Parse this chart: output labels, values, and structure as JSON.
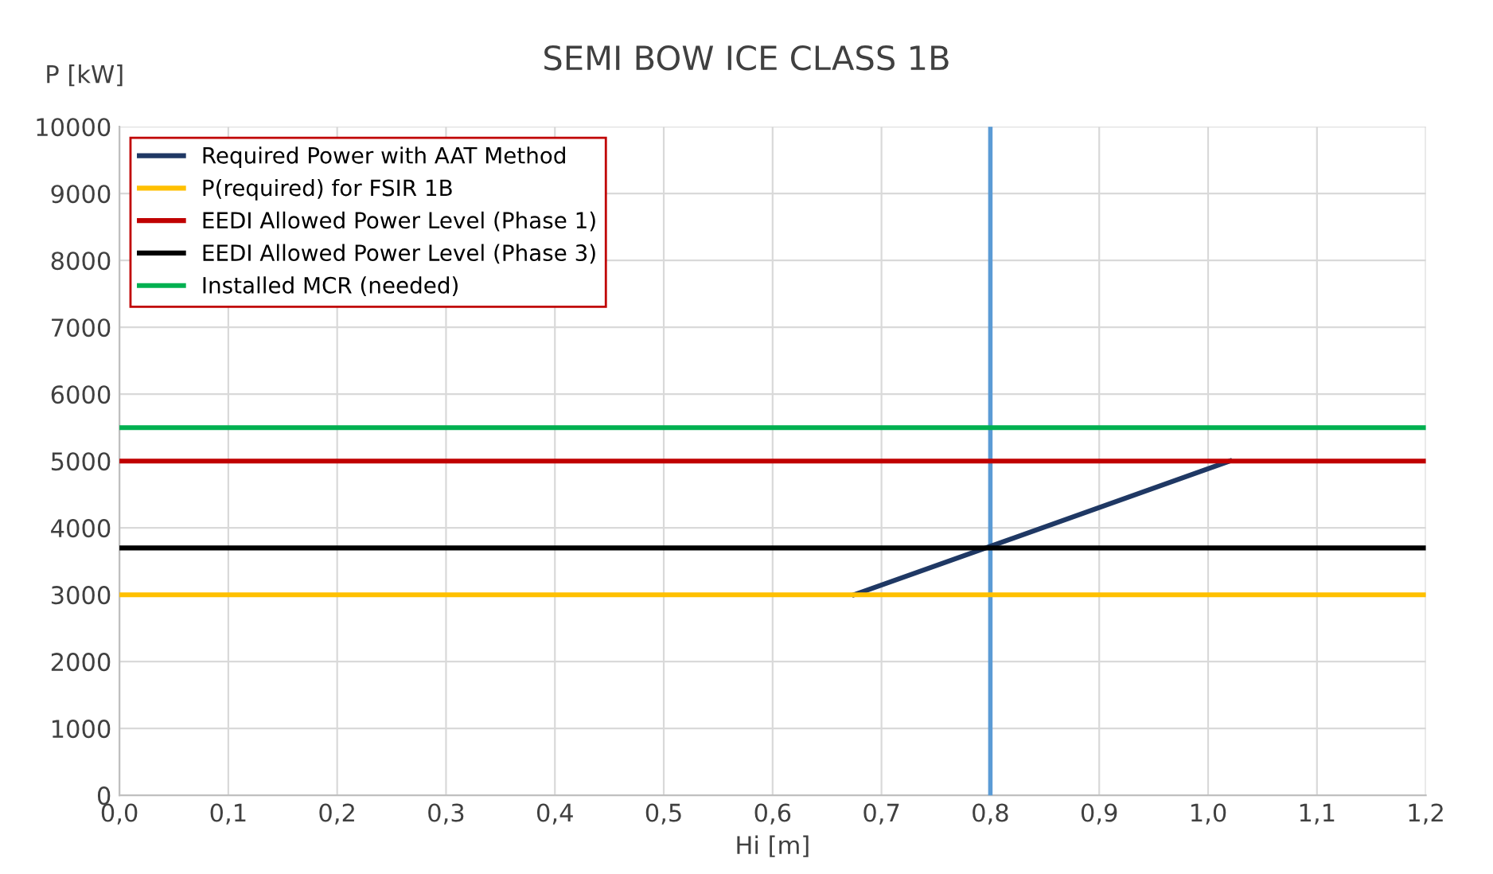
{
  "chart_data": {
    "type": "line",
    "title": "SEMI BOW ICE CLASS 1B",
    "xlabel": "Hi [m]",
    "ylabel": "P [kW]",
    "series": [
      {
        "name": "Required Power with AAT Method",
        "color": "#1f3864",
        "x": [
          0.675,
          1.02
        ],
        "values": [
          3000,
          5000
        ]
      },
      {
        "name": "P(required) for FSIR 1B",
        "color": "#ffc000",
        "x": [
          0,
          1.2
        ],
        "values": [
          3000,
          3000
        ]
      },
      {
        "name": "EEDI Allowed Power Level (Phase 1)",
        "color": "#c00000",
        "x": [
          0,
          1.2
        ],
        "values": [
          5000,
          5000
        ]
      },
      {
        "name": "EEDI Allowed Power Level (Phase 3)",
        "color": "#000000",
        "x": [
          0,
          1.2
        ],
        "values": [
          3700,
          3700
        ]
      },
      {
        "name": "Installed MCR (needed)",
        "color": "#00b050",
        "x": [
          0,
          1.2
        ],
        "values": [
          5500,
          5500
        ]
      }
    ],
    "ref_lines": [
      {
        "axis": "x",
        "value": 0.8,
        "color": "#5b9bd5"
      }
    ],
    "xlim": [
      0,
      1.2
    ],
    "xticks": [
      {
        "value": 0,
        "label": "0,0"
      },
      {
        "value": 0.1,
        "label": "0,1"
      },
      {
        "value": 0.2,
        "label": "0,2"
      },
      {
        "value": 0.3,
        "label": "0,3"
      },
      {
        "value": 0.4,
        "label": "0,4"
      },
      {
        "value": 0.5,
        "label": "0,5"
      },
      {
        "value": 0.6,
        "label": "0,6"
      },
      {
        "value": 0.7,
        "label": "0,7"
      },
      {
        "value": 0.8,
        "label": "0,8"
      },
      {
        "value": 0.9,
        "label": "0,9"
      },
      {
        "value": 1.0,
        "label": "1,0"
      },
      {
        "value": 1.1,
        "label": "1,1"
      },
      {
        "value": 1.2,
        "label": "1,2"
      }
    ],
    "ylim": [
      0,
      10000
    ],
    "yticks": [
      0,
      1000,
      2000,
      3000,
      4000,
      5000,
      6000,
      7000,
      8000,
      9000,
      10000
    ],
    "grid": true,
    "legend": "top left",
    "marker": "none",
    "line_style": "solid"
  }
}
